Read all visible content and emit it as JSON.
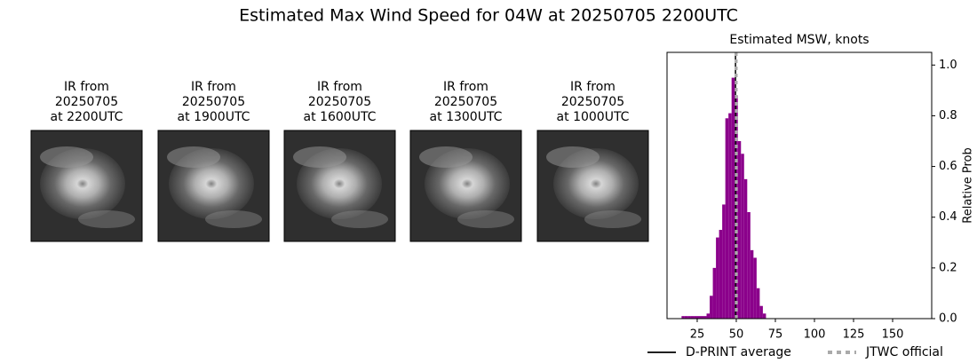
{
  "title": "Estimated Max Wind Speed for 04W at 20250705 2200UTC",
  "images": [
    {
      "label": [
        "IR from",
        "20250705",
        "at 2200UTC"
      ]
    },
    {
      "label": [
        "IR from",
        "20250705",
        "at 1900UTC"
      ]
    },
    {
      "label": [
        "IR from",
        "20250705",
        "at 1600UTC"
      ]
    },
    {
      "label": [
        "IR from",
        "20250705",
        "at 1300UTC"
      ]
    },
    {
      "label": [
        "IR from",
        "20250705",
        "at 1000UTC"
      ]
    }
  ],
  "chart_data": {
    "type": "histogram",
    "title": "Estimated MSW, knots",
    "y2_label": "Relative Prob",
    "color": "#8b008b",
    "bins": [
      15,
      17,
      19,
      21,
      23,
      25,
      27,
      29,
      31,
      33,
      35,
      37,
      39,
      41,
      43,
      45,
      47,
      49,
      51,
      53,
      55,
      57,
      59,
      61,
      63,
      65,
      67,
      69
    ],
    "values": [
      0.01,
      0.01,
      0.01,
      0.01,
      0.01,
      0.01,
      0.01,
      0.01,
      0.02,
      0.09,
      0.2,
      0.32,
      0.35,
      0.45,
      0.79,
      0.81,
      0.95,
      0.88,
      0.7,
      0.65,
      0.55,
      0.42,
      0.27,
      0.24,
      0.12,
      0.05,
      0.02
    ],
    "lines": [
      {
        "name": "D-PRINT average",
        "color": "#000000",
        "style": "solid",
        "value": 49.5
      },
      {
        "name": "JTWC official",
        "color": "#aaaaaa",
        "style": "dotted",
        "value": 50
      }
    ],
    "xlim": [
      5.7,
      175
    ],
    "xticks": [
      25,
      50,
      75,
      100,
      125,
      150
    ],
    "ylim": [
      0,
      1.05
    ],
    "yticks": [
      {
        "value": 0,
        "label": "0.0"
      },
      0.2,
      0.4,
      0.6,
      0.8,
      {
        "value": 1,
        "label": "1.0"
      }
    ]
  }
}
